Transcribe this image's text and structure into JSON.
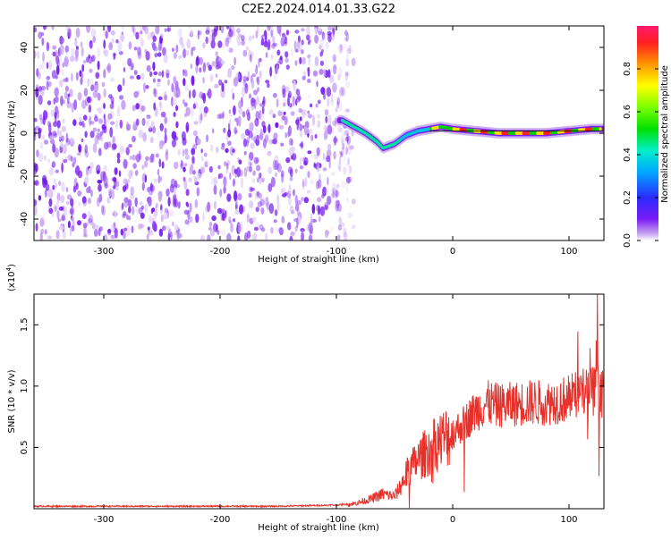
{
  "chart_data": [
    {
      "type": "heatmap",
      "title": "C2E2.2024.014.01.33.G22",
      "xlabel": "Height of straight line (km)",
      "ylabel": "Frequency (Hz)",
      "xlim": [
        -360,
        130
      ],
      "ylim": [
        -50,
        50
      ],
      "xticks": [
        -300,
        -200,
        -100,
        0,
        100
      ],
      "yticks": [
        -40,
        -20,
        0,
        20,
        40
      ],
      "noise_region_x": [
        -360,
        -85
      ],
      "ridge": {
        "name": "Doppler frequency ridge",
        "x": [
          -95,
          -85,
          -75,
          -65,
          -60,
          -55,
          -50,
          -40,
          -30,
          -20,
          -10,
          0,
          20,
          40,
          60,
          80,
          100,
          120,
          130
        ],
        "y": [
          6,
          3,
          0,
          -4,
          -7,
          -6,
          -5,
          -1,
          1,
          2,
          3,
          2,
          1,
          0,
          0,
          0,
          1,
          2,
          2
        ]
      },
      "colorbar": {
        "label": "Normalized spectral amplitude",
        "range": [
          0.0,
          1.0
        ],
        "ticks": [
          "0.0",
          "0.2",
          "0.4",
          "0.6",
          "0.8"
        ],
        "colors": [
          "#ffffff",
          "#c9a8f0",
          "#7a1cf5",
          "#2b2bff",
          "#00a8ff",
          "#00f0c8",
          "#00e000",
          "#7aff00",
          "#ffff00",
          "#ff9900",
          "#ff2020",
          "#ff1a6e"
        ]
      }
    },
    {
      "type": "line",
      "xlabel": "Height of straight line (km)",
      "ylabel": "SNR (10 * v/v)",
      "scale_label": "(x10",
      "scale_exp": "4",
      "scale_close": ")",
      "xlim": [
        -360,
        130
      ],
      "ylim": [
        0,
        1.75
      ],
      "xticks": [
        -300,
        -200,
        -100,
        0,
        100
      ],
      "yticks": [
        0.5,
        1.0,
        1.5
      ],
      "ytick_labels": [
        "0.5",
        "1.0",
        "1.5"
      ],
      "series": [
        {
          "name": "SNR",
          "color": "#e8302a",
          "x": [
            -360,
            -300,
            -200,
            -150,
            -100,
            -85,
            -70,
            -60,
            -50,
            -45,
            -40,
            -30,
            -20,
            -10,
            0,
            10,
            20,
            30,
            40,
            50,
            60,
            70,
            80,
            90,
            100,
            110,
            120,
            130
          ],
          "y": [
            0.02,
            0.02,
            0.02,
            0.02,
            0.03,
            0.04,
            0.08,
            0.12,
            0.1,
            0.18,
            0.28,
            0.4,
            0.48,
            0.56,
            0.62,
            0.7,
            0.8,
            0.86,
            0.84,
            0.85,
            0.86,
            0.87,
            0.86,
            0.88,
            0.9,
            0.95,
            0.96,
            0.94
          ]
        }
      ]
    }
  ]
}
